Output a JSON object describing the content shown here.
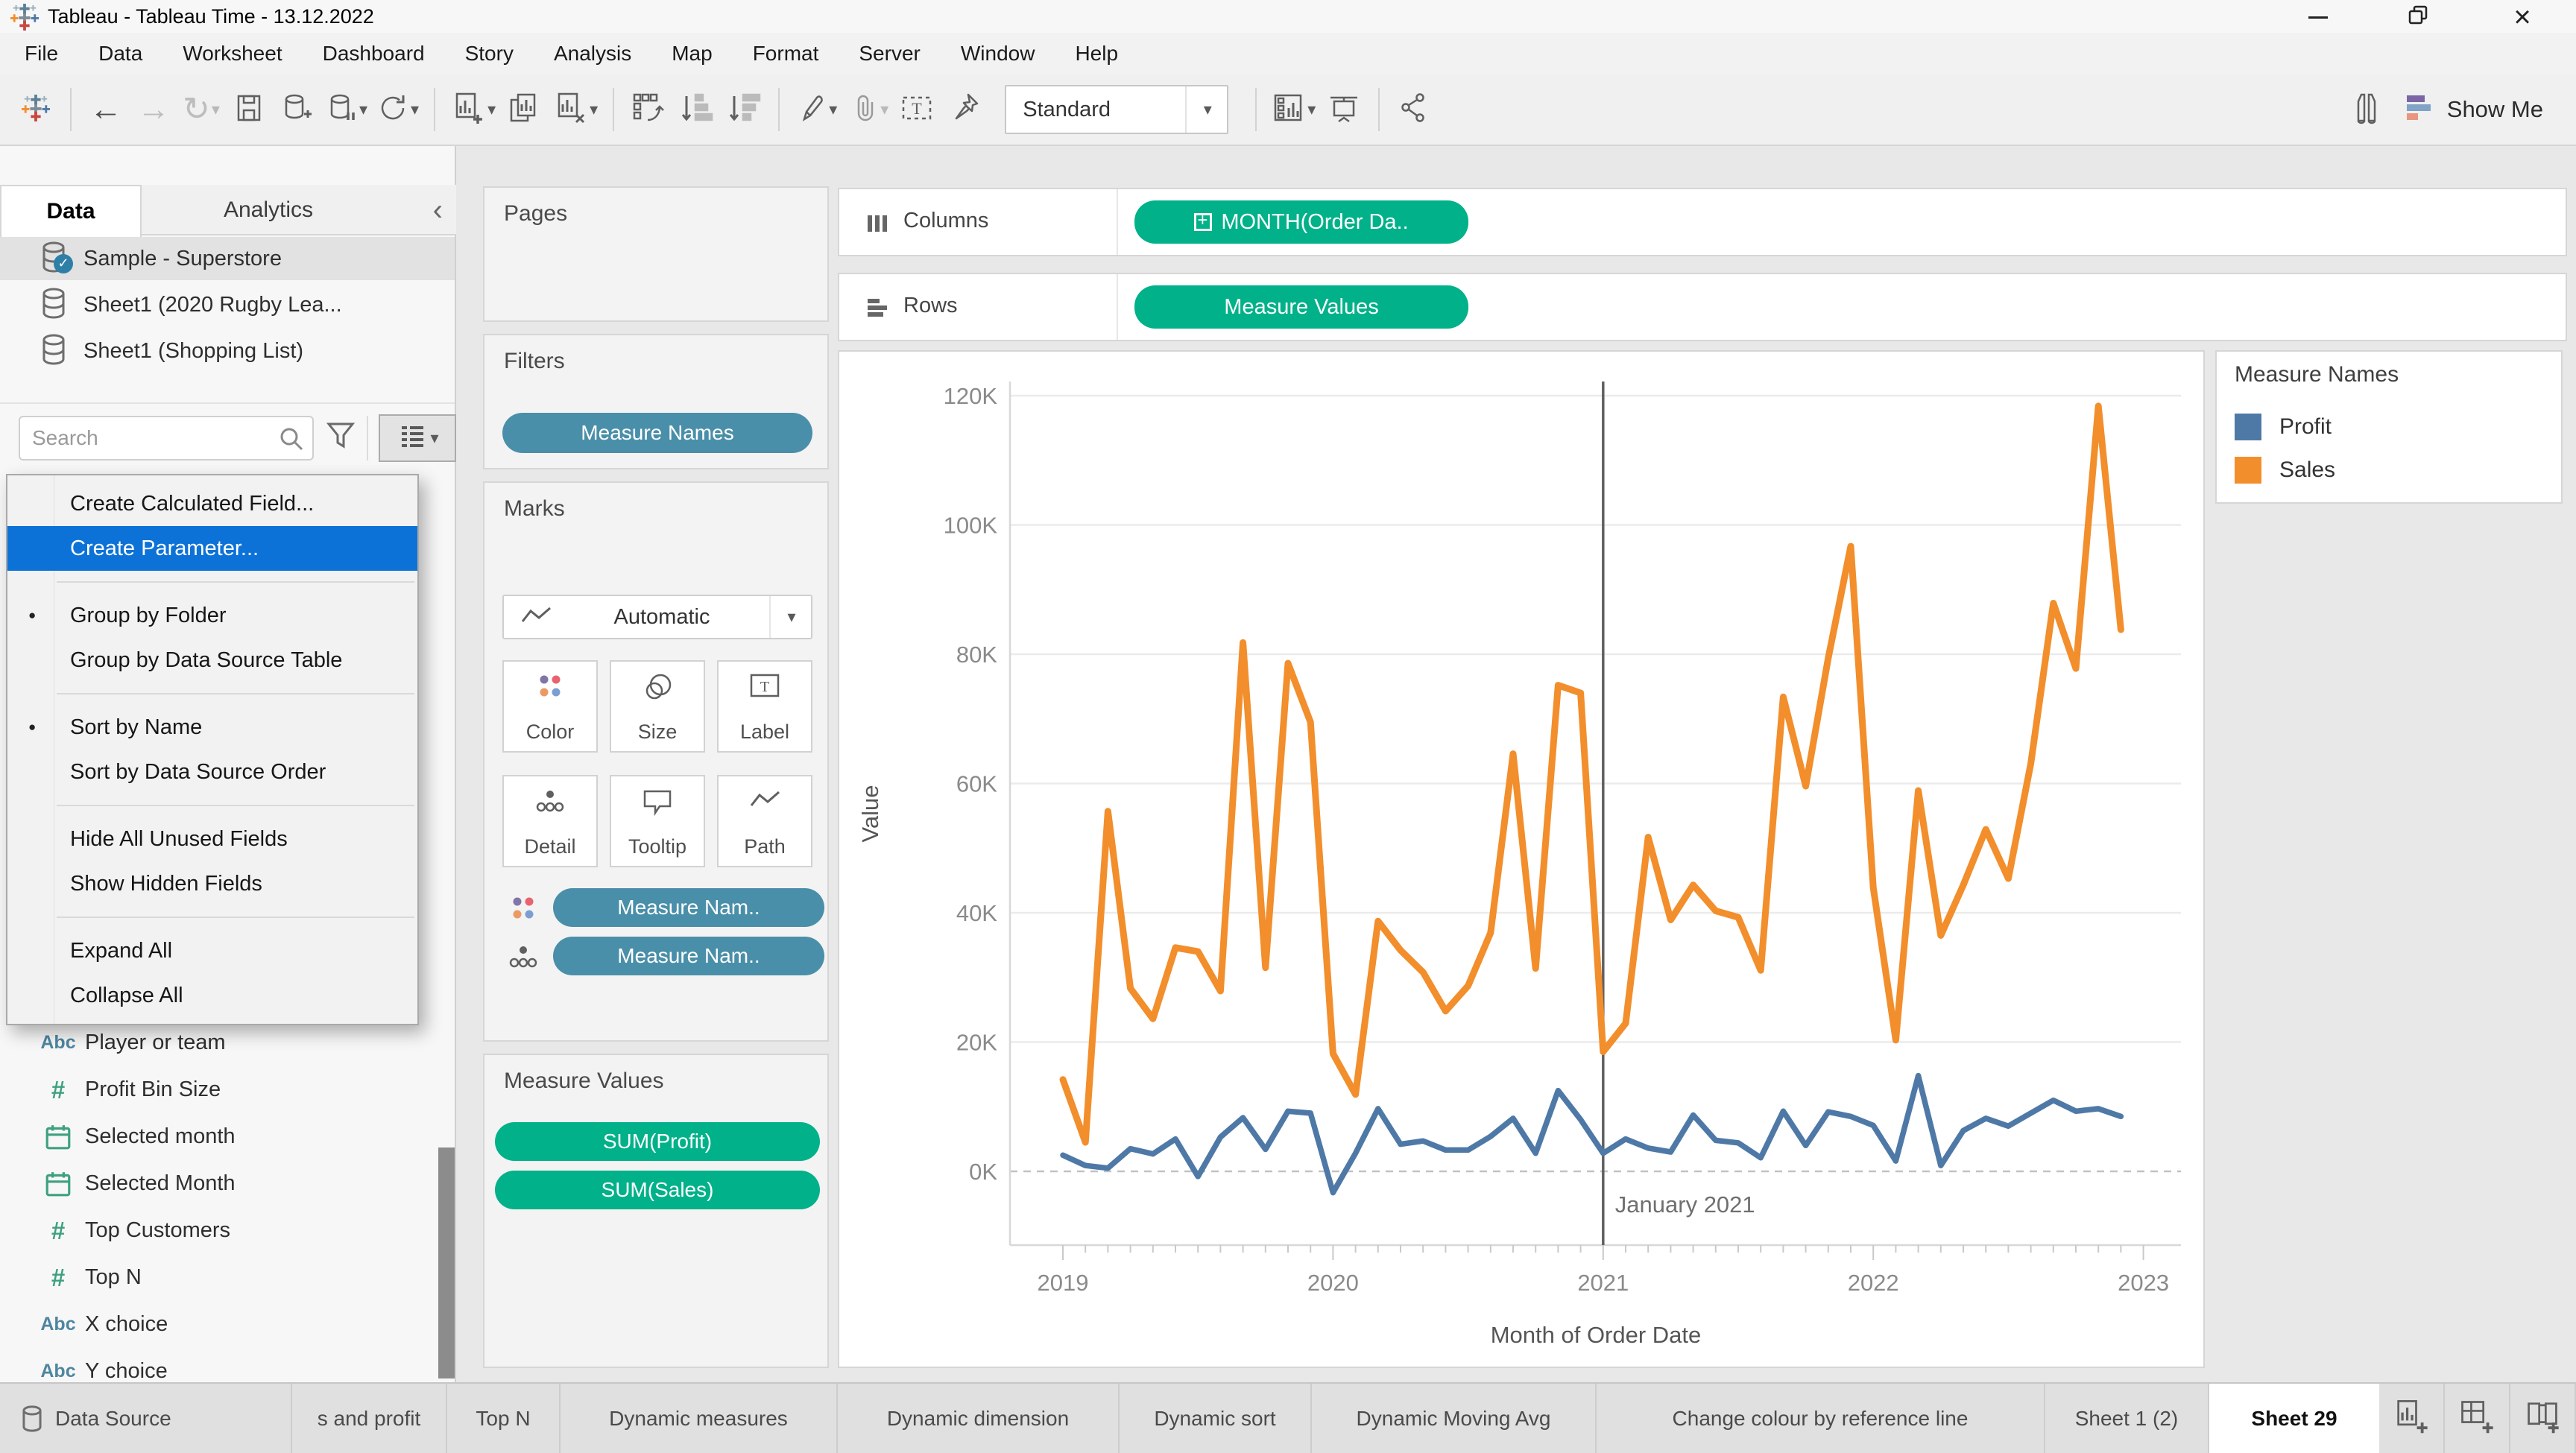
{
  "window": {
    "title": "Tableau - Tableau Time - 13.12.2022",
    "controls": [
      "minimize",
      "restore",
      "close"
    ]
  },
  "menu_bar": {
    "items": [
      "File",
      "Data",
      "Worksheet",
      "Dashboard",
      "Story",
      "Analysis",
      "Map",
      "Format",
      "Server",
      "Window",
      "Help"
    ]
  },
  "toolbar": {
    "fit_mode": "Standard",
    "show_me_label": "Show Me",
    "icons": [
      "tableau-logo",
      "back",
      "forward",
      "redo",
      "save",
      "new-data-source",
      "pause-auto-updates",
      "refresh-data-source",
      "new-worksheet",
      "duplicate-sheet",
      "clear-sheet",
      "swap-rows-columns",
      "sort-ascending",
      "sort-descending",
      "highlight",
      "paperclip",
      "show-mark-labels",
      "pin",
      "show-hide-cards",
      "presentation-mode",
      "share",
      "binoculars",
      "show-me-bars"
    ]
  },
  "left_panel": {
    "tabs": [
      {
        "label": "Data",
        "active": true
      },
      {
        "label": "Analytics",
        "active": false
      }
    ],
    "data_sources": [
      {
        "label": "Sample - Superstore",
        "selected": true
      },
      {
        "label": "Sheet1 (2020 Rugby Lea...",
        "selected": false
      },
      {
        "label": "Sheet1 (Shopping List)",
        "selected": false
      }
    ],
    "search": {
      "placeholder": "Search"
    },
    "fields": [
      {
        "icon": "abc",
        "label": "Player or team"
      },
      {
        "icon": "number",
        "label": "Profit Bin Size"
      },
      {
        "icon": "calendar",
        "label": "Selected month"
      },
      {
        "icon": "calendar",
        "label": "Selected Month"
      },
      {
        "icon": "number",
        "label": "Top Customers"
      },
      {
        "icon": "number",
        "label": "Top N"
      },
      {
        "icon": "abc",
        "label": "X choice"
      },
      {
        "icon": "abc",
        "label": "Y choice"
      }
    ]
  },
  "context_menu": {
    "items": [
      {
        "type": "item",
        "label": "Create Calculated Field...",
        "highlighted": false,
        "bullet": false
      },
      {
        "type": "item",
        "label": "Create Parameter...",
        "highlighted": true,
        "bullet": false
      },
      {
        "type": "separator"
      },
      {
        "type": "item",
        "label": "Group by Folder",
        "highlighted": false,
        "bullet": true
      },
      {
        "type": "item",
        "label": "Group by Data Source Table",
        "highlighted": false,
        "bullet": false
      },
      {
        "type": "separator"
      },
      {
        "type": "item",
        "label": "Sort by Name",
        "highlighted": false,
        "bullet": true
      },
      {
        "type": "item",
        "label": "Sort by Data Source Order",
        "highlighted": false,
        "bullet": false
      },
      {
        "type": "separator"
      },
      {
        "type": "item",
        "label": "Hide All Unused Fields",
        "highlighted": false,
        "bullet": false
      },
      {
        "type": "item",
        "label": "Show Hidden Fields",
        "highlighted": false,
        "bullet": false
      },
      {
        "type": "separator"
      },
      {
        "type": "item",
        "label": "Expand All",
        "highlighted": false,
        "bullet": false
      },
      {
        "type": "item",
        "label": "Collapse All",
        "highlighted": false,
        "bullet": false
      }
    ]
  },
  "shelves": {
    "columns": {
      "label": "Columns",
      "pill": "MONTH(Order Da.."
    },
    "rows": {
      "label": "Rows",
      "pill": "Measure Values"
    }
  },
  "cards": {
    "pages": {
      "title": "Pages"
    },
    "filters": {
      "title": "Filters",
      "pills": [
        {
          "label": "Measure Names",
          "color": "#4a8fa9"
        }
      ]
    },
    "marks": {
      "title": "Marks",
      "mark_type": "Automatic",
      "buttons": [
        {
          "icon": "color",
          "label": "Color"
        },
        {
          "icon": "size",
          "label": "Size"
        },
        {
          "icon": "label",
          "label": "Label"
        },
        {
          "icon": "detail",
          "label": "Detail"
        },
        {
          "icon": "tooltip",
          "label": "Tooltip"
        },
        {
          "icon": "path",
          "label": "Path"
        }
      ],
      "pills": [
        {
          "icon": "color",
          "label": "Measure Nam.."
        },
        {
          "icon": "detail",
          "label": "Measure Nam.."
        }
      ]
    },
    "measure_values": {
      "title": "Measure Values",
      "pills": [
        {
          "label": "SUM(Profit)"
        },
        {
          "label": "SUM(Sales)"
        }
      ]
    }
  },
  "chart_data": {
    "type": "line",
    "title": "",
    "xlabel": "Month of Order Date",
    "ylabel": "Value",
    "x_tick_labels": [
      "2019",
      "2020",
      "2021",
      "2022",
      "2023"
    ],
    "y_tick_labels": [
      "0K",
      "20K",
      "40K",
      "60K",
      "80K",
      "100K",
      "120K"
    ],
    "ylim": [
      -12,
      124
    ],
    "x_start_month": "2019-01",
    "x_months": 48,
    "grid": true,
    "zero_line_style": "dashed",
    "reference_line": {
      "label": "January 2021",
      "month_index": 24
    },
    "legend_position": "right",
    "series": [
      {
        "name": "Profit",
        "color": "#4e79a7",
        "unit": "K",
        "values": [
          2.5,
          0.9,
          0.5,
          3.5,
          2.7,
          5.0,
          -0.8,
          5.3,
          8.3,
          3.4,
          9.3,
          9.0,
          -3.3,
          2.8,
          9.7,
          4.2,
          4.7,
          3.3,
          3.3,
          5.4,
          8.2,
          2.8,
          12.5,
          8.0,
          2.8,
          5.0,
          3.6,
          3.0,
          8.7,
          4.8,
          4.4,
          2.1,
          9.3,
          4.0,
          9.2,
          8.5,
          7.1,
          1.6,
          14.8,
          0.9,
          6.3,
          8.2,
          7.0,
          9.0,
          11.0,
          9.3,
          9.7,
          8.5
        ]
      },
      {
        "name": "Sales",
        "color": "#f28e2b",
        "unit": "K",
        "values": [
          14.2,
          4.5,
          55.7,
          28.3,
          23.6,
          34.6,
          34.0,
          27.9,
          81.8,
          31.5,
          78.6,
          69.5,
          18.2,
          11.9,
          38.7,
          34.2,
          30.8,
          24.8,
          28.7,
          36.9,
          64.6,
          31.4,
          75.2,
          74.0,
          18.5,
          22.9,
          51.7,
          38.9,
          44.3,
          40.3,
          39.3,
          31.1,
          73.4,
          59.6,
          79.4,
          96.7,
          43.9,
          20.3,
          58.9,
          36.5,
          44.3,
          52.9,
          45.3,
          63.1,
          87.9,
          77.8,
          118.4,
          83.8
        ]
      }
    ]
  },
  "legend": {
    "title": "Measure Names",
    "entries": [
      {
        "label": "Profit",
        "color": "#4e79a7"
      },
      {
        "label": "Sales",
        "color": "#f28e2b"
      }
    ]
  },
  "bottom_tabs": {
    "tabs": [
      {
        "label": "Data Source",
        "icon": "database",
        "active": false
      },
      {
        "label": "s and profit",
        "active": false
      },
      {
        "label": "Top N",
        "active": false
      },
      {
        "label": "Dynamic measures",
        "active": false
      },
      {
        "label": "Dynamic dimension",
        "active": false
      },
      {
        "label": "Dynamic sort",
        "active": false
      },
      {
        "label": "Dynamic Moving Avg",
        "active": false
      },
      {
        "label": "Change colour by reference line",
        "active": false
      },
      {
        "label": "Sheet 1 (2)",
        "active": false
      },
      {
        "label": "Sheet 29",
        "active": true
      }
    ],
    "actions": [
      "new-worksheet",
      "new-dashboard",
      "new-story"
    ]
  },
  "colors": {
    "pill_green": "#00b189",
    "pill_blue": "#4a8fa9",
    "profit": "#4e79a7",
    "sales": "#f28e2b",
    "menu_highlight": "#0c72d8"
  }
}
